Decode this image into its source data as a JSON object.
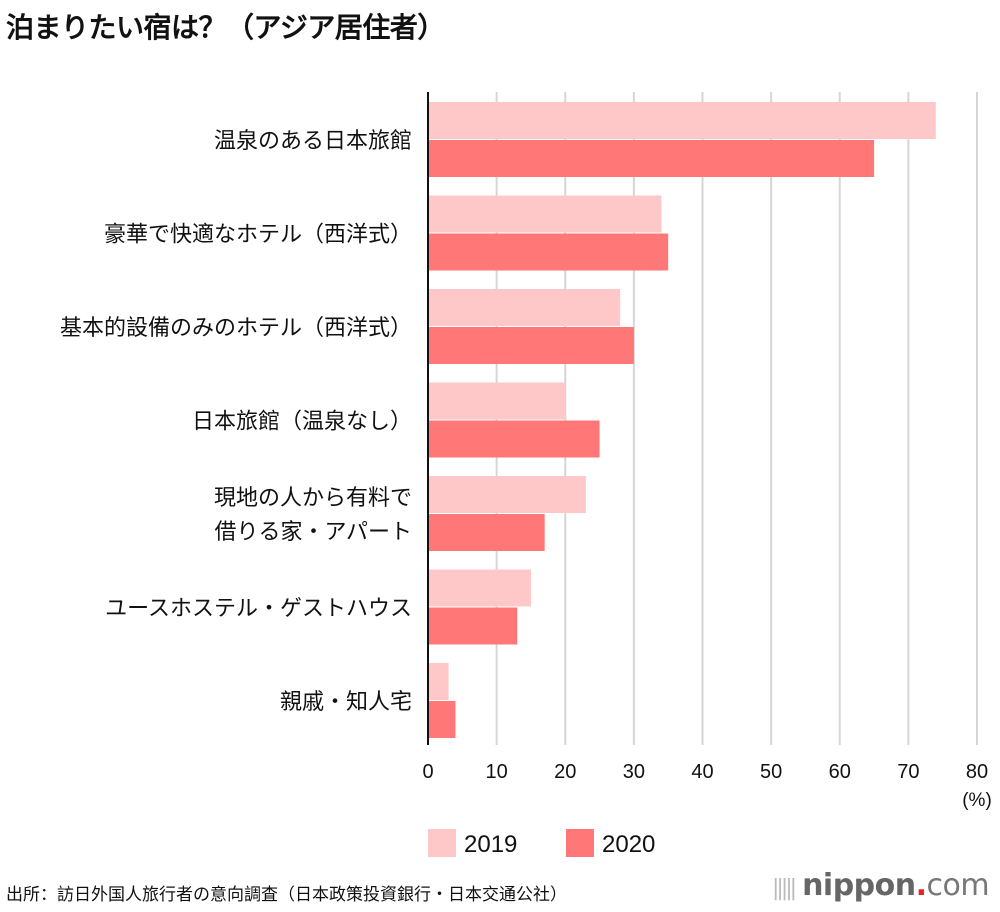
{
  "chart_data": {
    "type": "bar",
    "orientation": "horizontal",
    "title": "泊まりたい宿は？（アジア居住者）",
    "categories": [
      "温泉のある日本旅館",
      "豪華で快適なホテル（西洋式）",
      "基本的設備のみのホテル（西洋式）",
      "日本旅館（温泉なし）",
      "現地の人から有料で\n借りる家・アパート",
      "ユースホステル・ゲストハウス",
      "親戚・知人宅"
    ],
    "series": [
      {
        "name": "2019",
        "color": "#ffc8c8",
        "values": [
          74,
          34,
          28,
          20,
          23,
          15,
          3
        ]
      },
      {
        "name": "2020",
        "color": "#ff7777",
        "values": [
          65,
          35,
          30,
          25,
          17,
          13,
          4
        ]
      }
    ],
    "xlim": [
      0,
      80
    ],
    "xticks": [
      0,
      10,
      20,
      30,
      40,
      50,
      60,
      70,
      80
    ],
    "xlabel": "(%)",
    "grid": true,
    "legend": "bottom"
  },
  "source": "出所：訪日外国人旅行者の意向調査（日本政策投資銀行・日本交通公社）",
  "logo": {
    "name": "nippon",
    "dot": ".",
    "suffix": "com"
  }
}
